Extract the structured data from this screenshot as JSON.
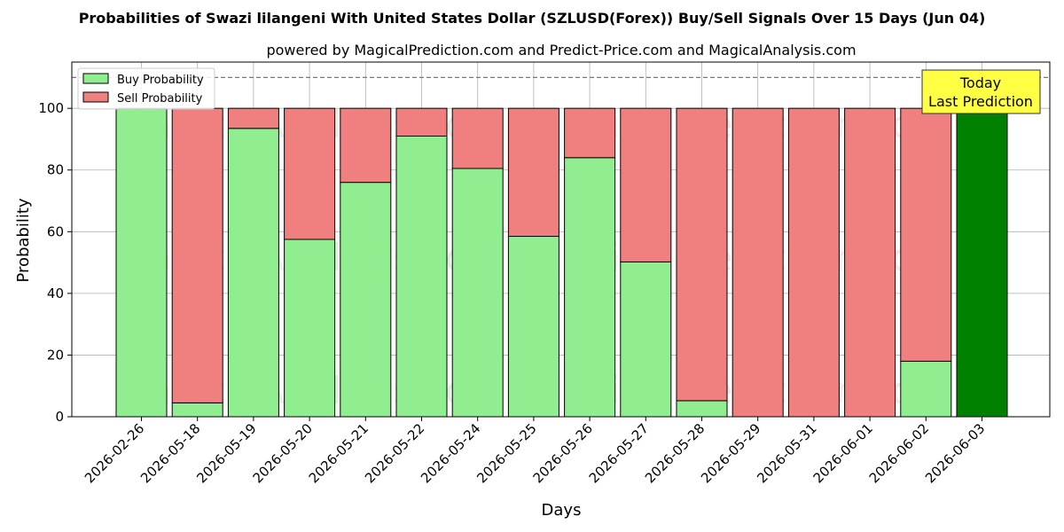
{
  "chart_data": {
    "type": "bar",
    "stacked": true,
    "title": "Probabilities of Swazi lilangeni With United States Dollar (SZLUSD(Forex)) Buy/Sell Signals Over 15 Days (Jun 04)",
    "subtitle": "powered by MagicalPrediction.com and Predict-Price.com and MagicalAnalysis.com",
    "xlabel": "Days",
    "ylabel": "Probability",
    "ylim": [
      0,
      115
    ],
    "yticks": [
      0,
      20,
      40,
      60,
      80,
      100
    ],
    "reference_line": 110,
    "grid": true,
    "legend_position": "top-left",
    "categories": [
      "2026-02-26",
      "2026-05-18",
      "2026-05-19",
      "2026-05-20",
      "2026-05-21",
      "2026-05-22",
      "2026-05-24",
      "2026-05-25",
      "2026-05-26",
      "2026-05-27",
      "2026-05-28",
      "2026-05-29",
      "2026-05-31",
      "2026-06-01",
      "2026-06-02",
      "2026-06-03"
    ],
    "series": [
      {
        "name": "Buy Probability",
        "color": "#90ee90",
        "values": [
          100,
          4.5,
          93.5,
          57.5,
          76,
          91,
          80.5,
          58.5,
          84,
          50.2,
          5.2,
          0,
          0,
          0,
          18,
          100
        ]
      },
      {
        "name": "Sell Probability",
        "color": "#f08080",
        "values": [
          0,
          95.5,
          6.5,
          42.5,
          24,
          9,
          19.5,
          41.5,
          16,
          49.8,
          94.8,
          100,
          100,
          100,
          82,
          0
        ]
      }
    ],
    "highlight": {
      "index": 15,
      "color": "#008000"
    },
    "annotation": {
      "line1": "Today",
      "line2": "Last Prediction",
      "background": "#ffff44"
    },
    "watermarks": [
      "MagicalAnalysis.com",
      "MagicalPrediction.com"
    ]
  }
}
